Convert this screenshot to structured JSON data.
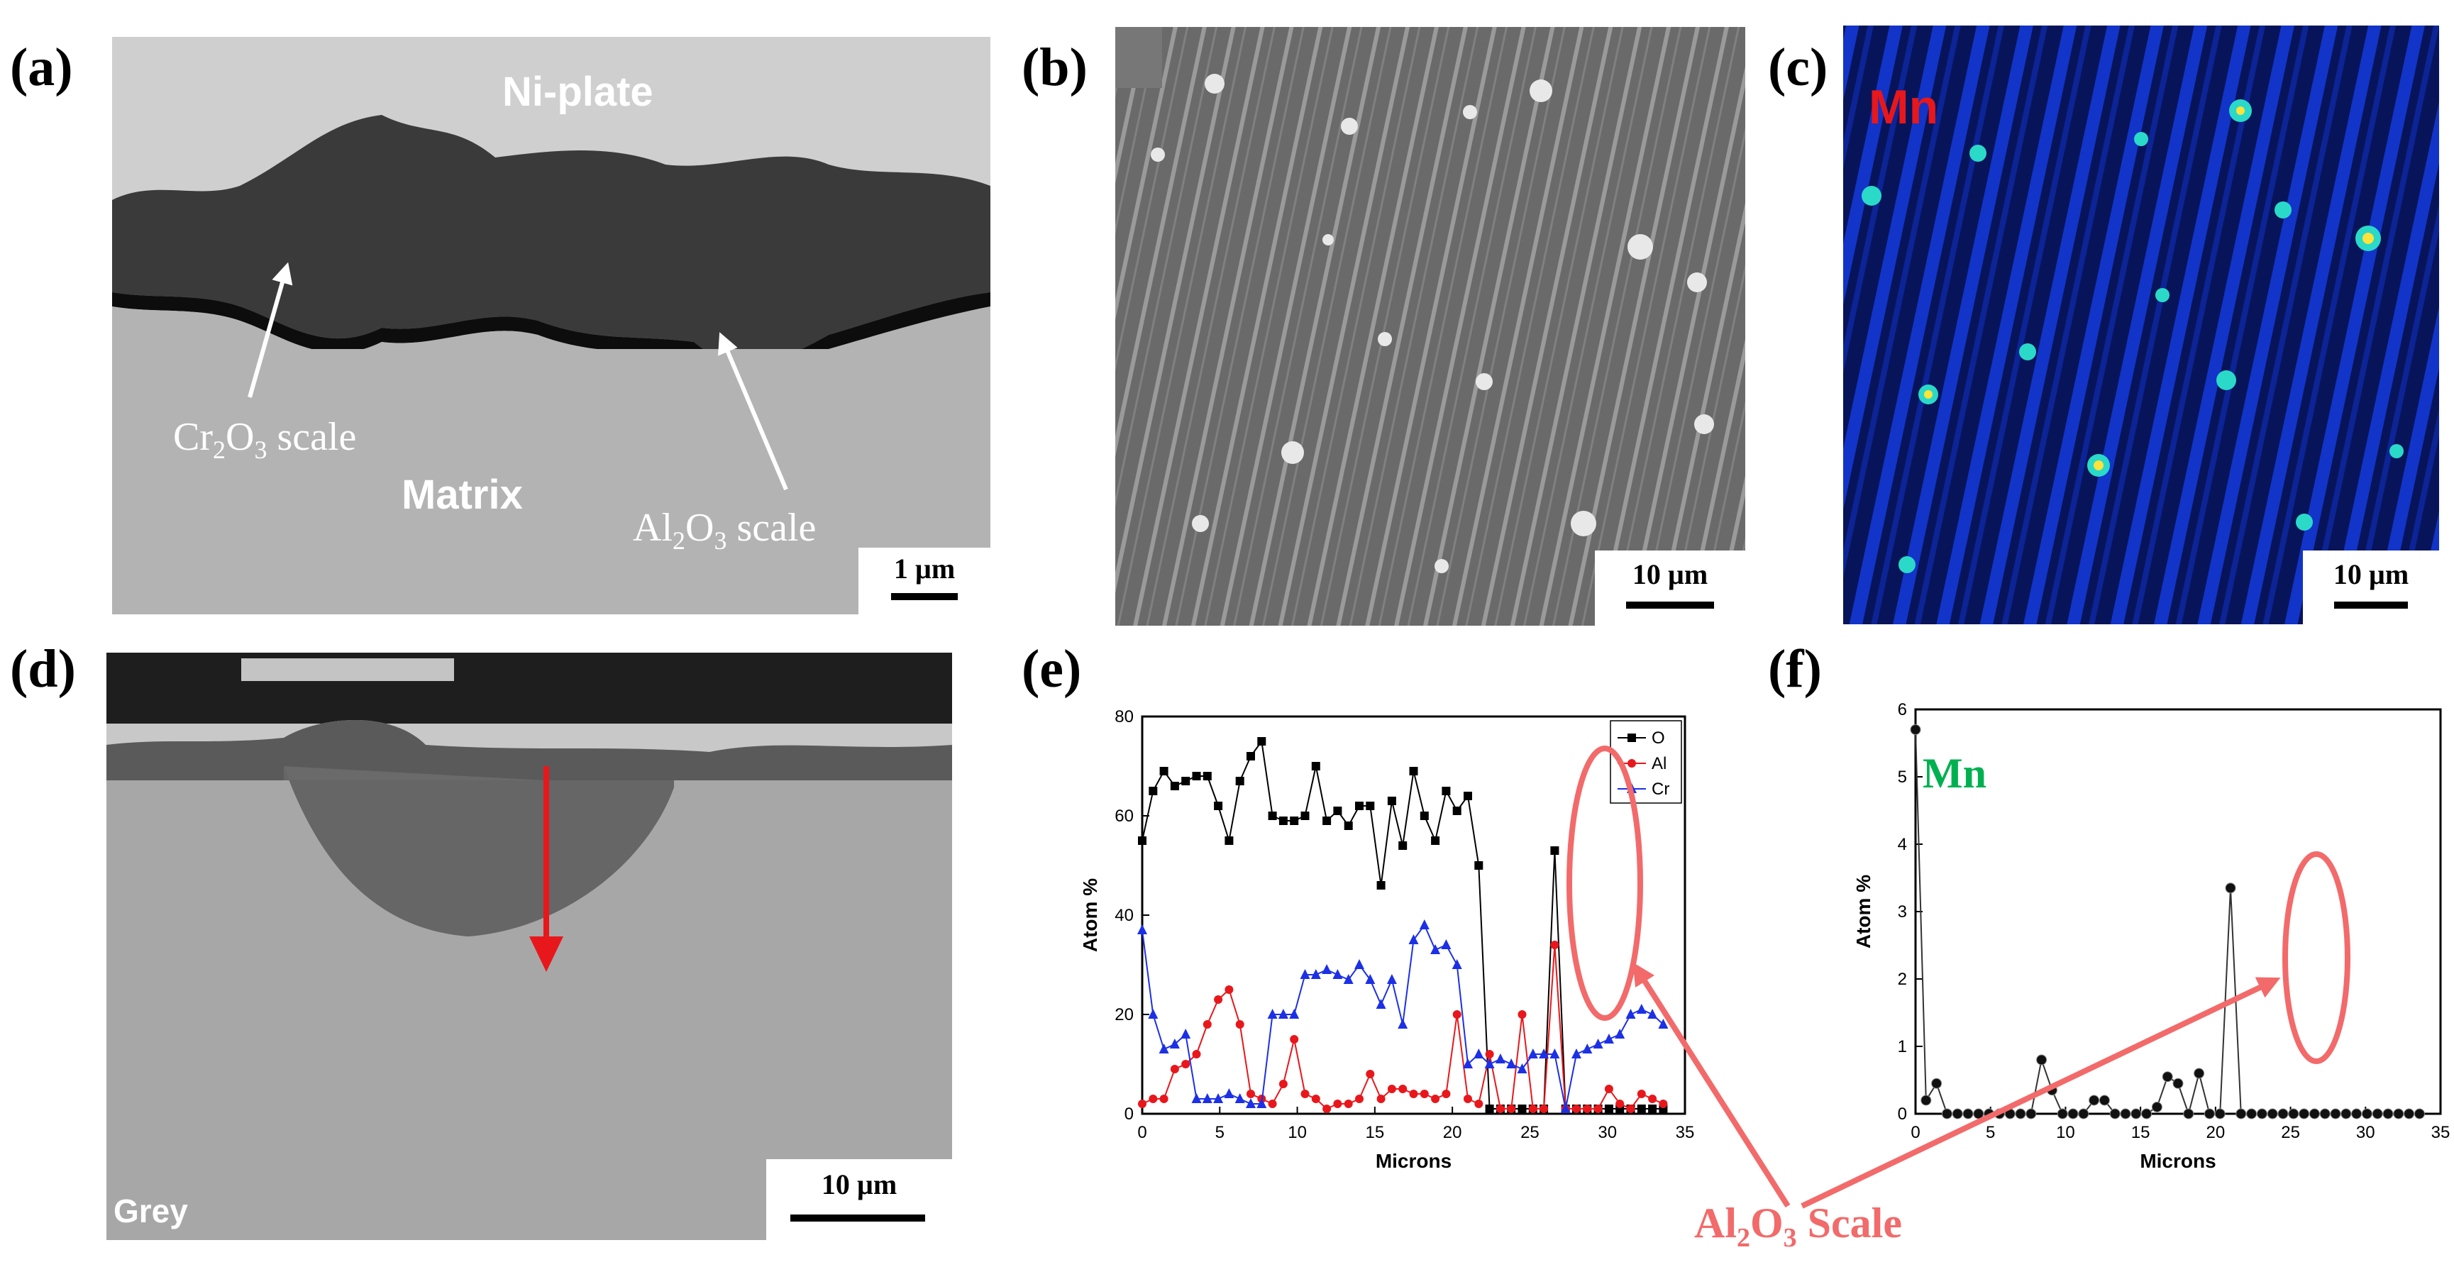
{
  "panel_labels": [
    "(a)",
    "(b)",
    "(c)",
    "(d)",
    "(e)",
    "(f)"
  ],
  "panel_a": {
    "ni_plate": "Ni-plate",
    "matrix": "Matrix",
    "cr_scale": {
      "pre": "Cr",
      "s1": "2",
      "mid": "O",
      "s2": "3",
      "post": " scale"
    },
    "al_scale": {
      "pre": "Al",
      "s1": "2",
      "mid": "O",
      "s2": "3",
      "post": " scale"
    },
    "scale_bar": "1 µm"
  },
  "panel_b": {
    "scale_bar": "10 µm"
  },
  "panel_c": {
    "element": "Mn",
    "scale_bar": "10 µm"
  },
  "panel_d": {
    "label": "Grey",
    "scale_bar": "10 µm"
  },
  "callout": {
    "pre": "Al",
    "s1": "2",
    "mid": "O",
    "s2": "3",
    "post": " Scale"
  },
  "colors": {
    "O": "#000000",
    "Al": "#e8171b",
    "Cr": "#1c30e6",
    "annotation": "#f26a6a",
    "mn_label_e": "#00b050",
    "mn_label_c": "#e8171b"
  },
  "chart_data": [
    {
      "type": "line",
      "panel": "(e)",
      "xlabel": "Microns",
      "ylabel": "Atom %",
      "xlim": [
        0,
        35
      ],
      "ylim": [
        0,
        80
      ],
      "xticks": [
        0,
        5,
        10,
        15,
        20,
        25,
        30,
        35
      ],
      "yticks": [
        0,
        20,
        40,
        60,
        80
      ],
      "legend": "top-right",
      "x": [
        0,
        0.7,
        1.4,
        2.1,
        2.8,
        3.5,
        4.2,
        4.9,
        5.6,
        6.3,
        7,
        7.7,
        8.4,
        9.1,
        9.8,
        10.5,
        11.2,
        11.9,
        12.6,
        13.3,
        14,
        14.7,
        15.4,
        16.1,
        16.8,
        17.5,
        18.2,
        18.9,
        19.6,
        20.3,
        21,
        21.7,
        22.4,
        23.1,
        23.8,
        24.5,
        25.2,
        25.9,
        26.6,
        27.3,
        28,
        28.7,
        29.4,
        30.1,
        30.8,
        31.5,
        32.2,
        32.9,
        33.6
      ],
      "series": [
        {
          "name": "O",
          "marker": "square",
          "values": [
            55,
            65,
            69,
            66,
            67,
            68,
            68,
            62,
            55,
            67,
            72,
            75,
            60,
            59,
            59,
            60,
            70,
            59,
            61,
            58,
            62,
            62,
            46,
            63,
            54,
            69,
            60,
            55,
            65,
            61,
            64,
            50,
            1,
            1,
            1,
            1,
            1,
            1,
            53,
            1,
            1,
            1,
            1,
            1,
            1,
            1,
            1,
            1,
            1
          ]
        },
        {
          "name": "Al",
          "marker": "circle",
          "values": [
            2,
            3,
            3,
            9,
            10,
            12,
            18,
            23,
            25,
            18,
            4,
            3,
            2,
            6,
            15,
            4,
            3,
            1,
            2,
            2,
            3,
            8,
            3,
            5,
            5,
            4,
            4,
            3,
            4,
            20,
            3,
            2,
            12,
            1,
            1,
            20,
            1,
            1,
            34,
            1,
            1,
            1,
            1,
            5,
            2,
            1,
            4,
            3,
            2
          ]
        },
        {
          "name": "Cr",
          "marker": "triangle",
          "values": [
            37,
            20,
            13,
            14,
            16,
            3,
            3,
            3,
            4,
            3,
            2,
            2,
            20,
            20,
            20,
            28,
            28,
            29,
            28,
            27,
            30,
            27,
            22,
            27,
            18,
            35,
            38,
            33,
            34,
            30,
            10,
            12,
            10,
            11,
            10,
            9,
            12,
            12,
            12,
            1,
            12,
            13,
            14,
            15,
            16,
            20,
            21,
            20,
            18
          ]
        }
      ]
    },
    {
      "type": "line",
      "panel": "(f)",
      "title": "Mn",
      "xlabel": "Microns",
      "ylabel": "Atom %",
      "xlim": [
        0,
        35
      ],
      "ylim": [
        0,
        6
      ],
      "xticks": [
        0,
        5,
        10,
        15,
        20,
        25,
        30,
        35
      ],
      "yticks": [
        0,
        1,
        2,
        3,
        4,
        5,
        6
      ],
      "x": [
        0,
        0.7,
        1.4,
        2.1,
        2.8,
        3.5,
        4.2,
        4.9,
        5.6,
        6.3,
        7,
        7.7,
        8.4,
        9.1,
        9.8,
        10.5,
        11.2,
        11.9,
        12.6,
        13.3,
        14,
        14.7,
        15.4,
        16.1,
        16.8,
        17.5,
        18.2,
        18.9,
        19.6,
        20.3,
        21,
        21.7,
        22.4,
        23.1,
        23.8,
        24.5,
        25.2,
        25.9,
        26.6,
        27.3,
        28,
        28.7,
        29.4,
        30.1,
        30.8,
        31.5,
        32.2,
        32.9,
        33.6
      ],
      "series": [
        {
          "name": "Mn",
          "marker": "circle",
          "values": [
            5.7,
            0.2,
            0.45,
            0,
            0,
            0,
            0,
            0,
            0,
            0,
            0,
            0,
            0.8,
            0.35,
            0,
            0,
            0,
            0.2,
            0.2,
            0,
            0,
            0,
            0,
            0.1,
            0.55,
            0.45,
            0,
            0.6,
            0,
            0,
            3.35,
            0,
            0,
            0,
            0,
            0,
            0,
            0,
            0,
            0,
            0,
            0,
            0,
            0,
            0,
            0,
            0,
            0,
            0
          ]
        }
      ]
    }
  ]
}
